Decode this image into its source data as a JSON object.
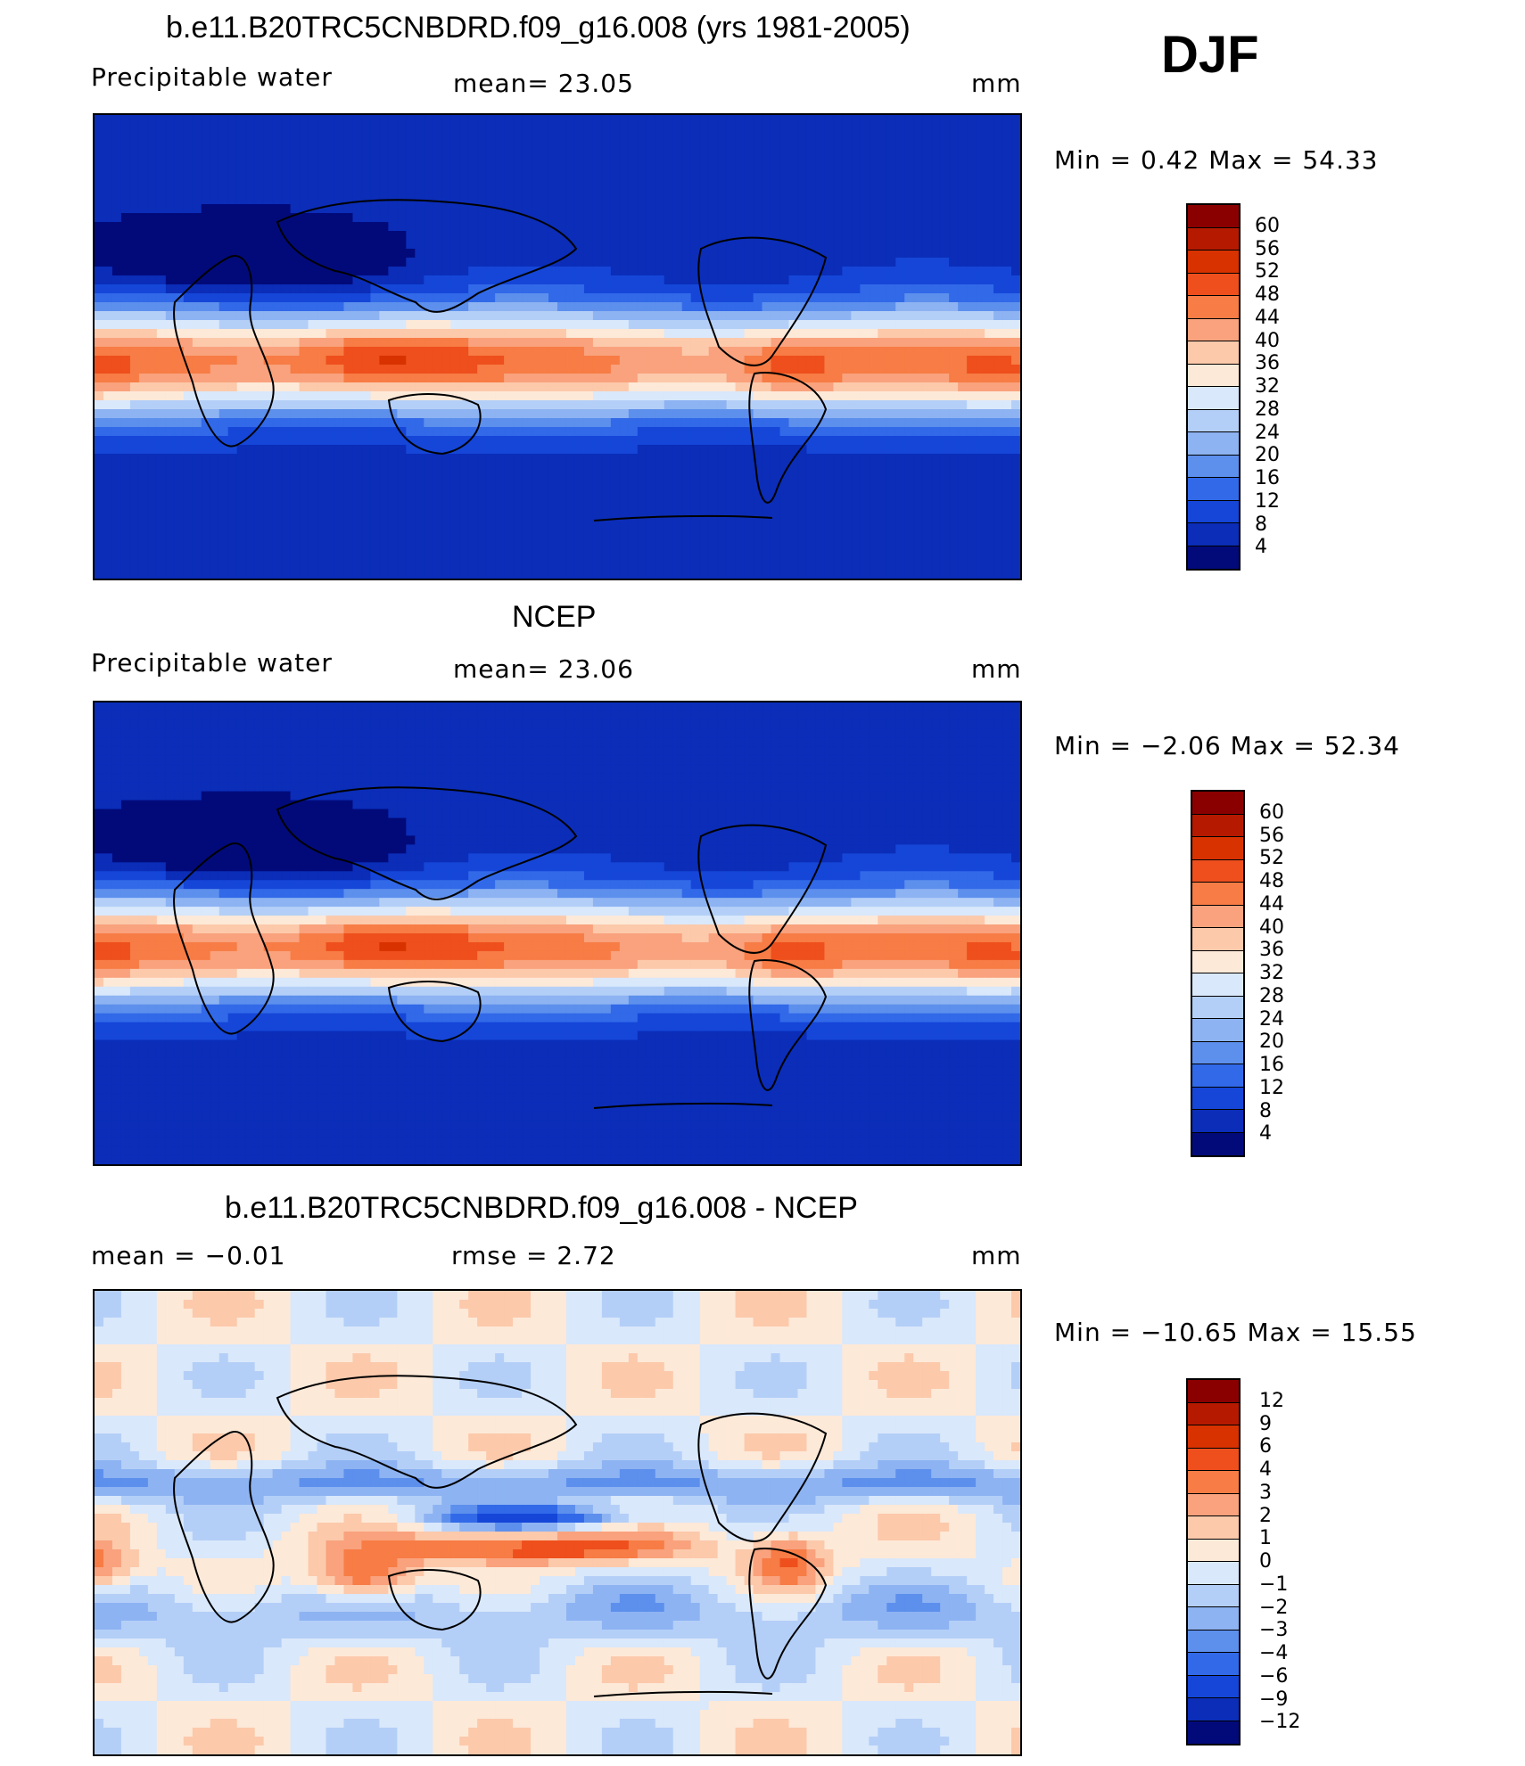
{
  "season": "DJF",
  "panels": [
    {
      "title": "b.e11.B20TRC5CNBDRD.f09_g16.008 (yrs 1981-2005)",
      "left_label": "Precipitable  water",
      "center_label": "mean=   23.05",
      "units": "mm",
      "minmax": "Min  =     0.42  Max  =    54.33",
      "levels": [
        "60",
        "56",
        "52",
        "48",
        "44",
        "40",
        "36",
        "32",
        "28",
        "24",
        "20",
        "16",
        "12",
        "8",
        "4"
      ],
      "colors": [
        "#8a0000",
        "#b51a00",
        "#d83200",
        "#ee4f1c",
        "#f77c45",
        "#f9a27d",
        "#fcc9ab",
        "#fde9d8",
        "#d9e8fb",
        "#b4cff7",
        "#8db3f2",
        "#5d8fed",
        "#3169e8",
        "#1546d8",
        "#0b2db8",
        "#020a7a"
      ]
    },
    {
      "title": "NCEP",
      "left_label": "Precipitable  water",
      "center_label": "mean=   23.06",
      "units": "mm",
      "minmax": "Min  =   −2.06  Max  =    52.34",
      "levels": [
        "60",
        "56",
        "52",
        "48",
        "44",
        "40",
        "36",
        "32",
        "28",
        "24",
        "20",
        "16",
        "12",
        "8",
        "4"
      ],
      "colors": [
        "#8a0000",
        "#b51a00",
        "#d83200",
        "#ee4f1c",
        "#f77c45",
        "#f9a27d",
        "#fcc9ab",
        "#fde9d8",
        "#d9e8fb",
        "#b4cff7",
        "#8db3f2",
        "#5d8fed",
        "#3169e8",
        "#1546d8",
        "#0b2db8",
        "#020a7a"
      ]
    },
    {
      "title": "b.e11.B20TRC5CNBDRD.f09_g16.008 - NCEP",
      "left_label": "mean  =    −0.01",
      "center_label": "rmse  =     2.72",
      "units": "mm",
      "minmax": "Min  =  −10.65  Max  =    15.55",
      "levels": [
        "12",
        "9",
        "6",
        "4",
        "3",
        "2",
        "1",
        "0",
        "−1",
        "−2",
        "−3",
        "−4",
        "−6",
        "−9",
        "−12"
      ],
      "colors": [
        "#8a0000",
        "#b51a00",
        "#d83200",
        "#ee4f1c",
        "#f77c45",
        "#f9a27d",
        "#fcc9ab",
        "#fde9d8",
        "#d9e8fb",
        "#b4cff7",
        "#8db3f2",
        "#5d8fed",
        "#3169e8",
        "#1546d8",
        "#0b2db8",
        "#020a7a"
      ]
    }
  ],
  "chart_data": [
    {
      "type": "heatmap",
      "title": "b.e11.B20TRC5CNBDRD.f09_g16.008 (yrs 1981-2005)",
      "variable": "Precipitable water",
      "units": "mm",
      "mean": 23.05,
      "min": 0.42,
      "max": 54.33,
      "contour_levels": [
        4,
        8,
        12,
        16,
        20,
        24,
        28,
        32,
        36,
        40,
        44,
        48,
        52,
        56,
        60
      ]
    },
    {
      "type": "heatmap",
      "title": "NCEP",
      "variable": "Precipitable water",
      "units": "mm",
      "mean": 23.06,
      "min": -2.06,
      "max": 52.34,
      "contour_levels": [
        4,
        8,
        12,
        16,
        20,
        24,
        28,
        32,
        36,
        40,
        44,
        48,
        52,
        56,
        60
      ]
    },
    {
      "type": "heatmap",
      "title": "b.e11.B20TRC5CNBDRD.f09_g16.008 - NCEP",
      "units": "mm",
      "mean": -0.01,
      "rmse": 2.72,
      "min": -10.65,
      "max": 15.55,
      "contour_levels": [
        -12,
        -9,
        -6,
        -4,
        -3,
        -2,
        -1,
        0,
        1,
        2,
        3,
        4,
        6,
        9,
        12
      ]
    }
  ]
}
